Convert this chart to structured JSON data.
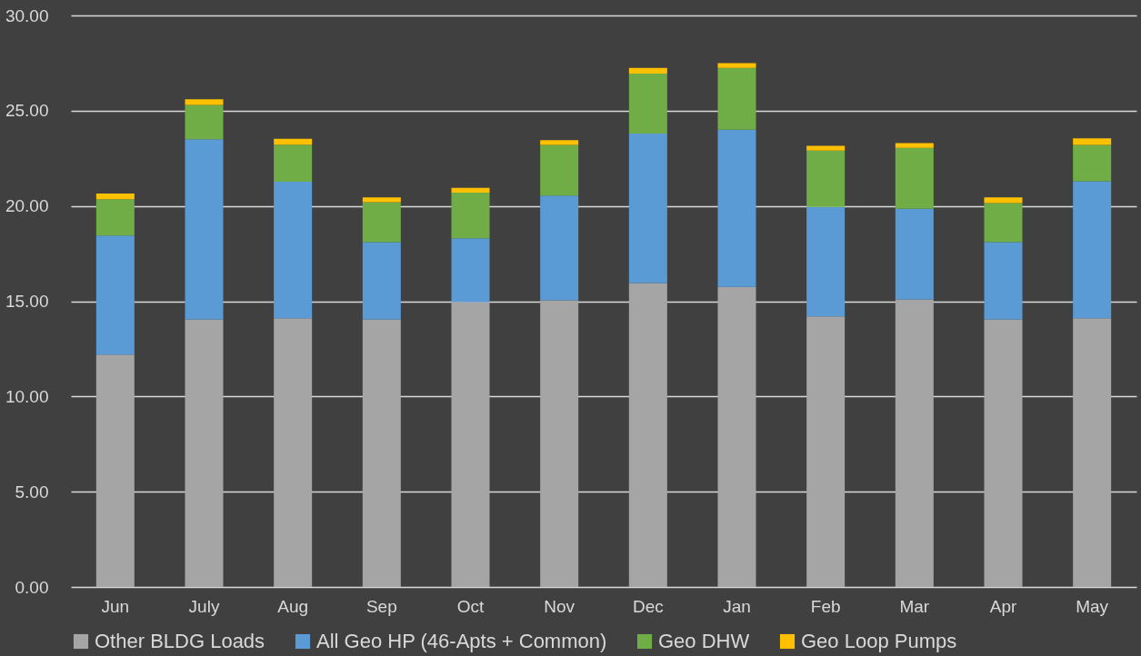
{
  "chart_data": {
    "type": "bar",
    "stacked": true,
    "categories": [
      "Jun",
      "July",
      "Aug",
      "Sep",
      "Oct",
      "Nov",
      "Dec",
      "Jan",
      "Feb",
      "Mar",
      "Apr",
      "May"
    ],
    "series": [
      {
        "name": "Other BLDG Loads",
        "color": "#a5a5a5",
        "values": [
          12.2,
          14.05,
          14.1,
          14.05,
          14.95,
          15.05,
          15.95,
          15.75,
          14.2,
          15.1,
          14.05,
          14.1
        ]
      },
      {
        "name": "All Geo HP (46-Apts + Common)",
        "color": "#5b9bd5",
        "values": [
          6.25,
          9.45,
          7.17,
          4.05,
          3.35,
          5.5,
          7.85,
          8.25,
          5.75,
          4.75,
          4.05,
          7.2
        ]
      },
      {
        "name": "Geo DHW",
        "color": "#70ad47",
        "values": [
          1.9,
          1.8,
          1.95,
          2.1,
          2.4,
          2.65,
          3.15,
          3.25,
          2.95,
          3.2,
          2.05,
          1.9
        ]
      },
      {
        "name": "Geo Loop Pumps",
        "color": "#ffc000",
        "values": [
          0.3,
          0.3,
          0.3,
          0.25,
          0.25,
          0.25,
          0.3,
          0.25,
          0.25,
          0.25,
          0.3,
          0.35
        ]
      }
    ],
    "ylim": [
      0,
      30
    ],
    "yticks": [
      {
        "value": 0,
        "label": "0.00"
      },
      {
        "value": 5,
        "label": "5.00"
      },
      {
        "value": 10,
        "label": "10.00"
      },
      {
        "value": 15,
        "label": "15.00"
      },
      {
        "value": 20,
        "label": "20.00"
      },
      {
        "value": 25,
        "label": "25.00"
      },
      {
        "value": 30,
        "label": "30.00"
      }
    ],
    "grid": "y",
    "legend": "bottom"
  }
}
